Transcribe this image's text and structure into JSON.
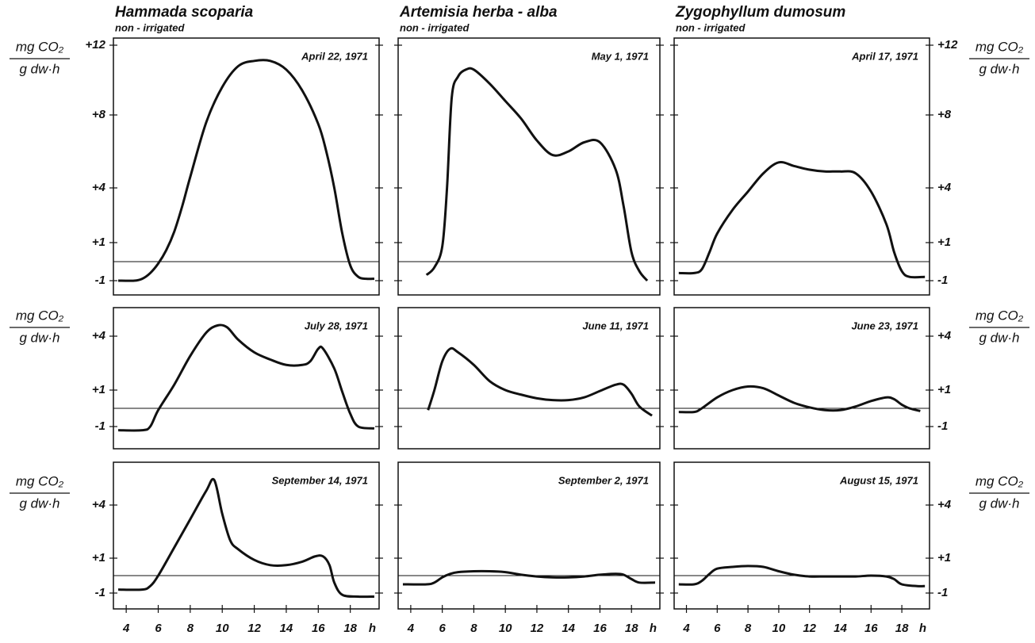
{
  "chart_data": [
    {
      "type": "line",
      "title": "Hammada scoparia",
      "subtitle": "non - irrigated",
      "annotation": "April 22, 1971",
      "ylabel": [
        "mg CO₂",
        "g dw·h"
      ],
      "ylim": [
        -1.75,
        12.4
      ],
      "yticks": [
        -1,
        {
          "value": 1,
          "label": "+1"
        },
        {
          "value": 4,
          "label": "+4"
        },
        {
          "value": 8,
          "label": "+8"
        },
        {
          "value": 12,
          "label": "+12"
        }
      ],
      "xlim": [
        3.2,
        19.8
      ],
      "color": "#111",
      "x": [
        3.5,
        4.5,
        5,
        5.5,
        6,
        6.5,
        7,
        7.5,
        8,
        9,
        10,
        11,
        12,
        13,
        14,
        15,
        16,
        16.5,
        17,
        17.5,
        18,
        18.5,
        19,
        19.5
      ],
      "values": [
        -1.0,
        -1.0,
        -0.9,
        -0.6,
        -0.1,
        0.6,
        1.6,
        3,
        4.6,
        7.6,
        9.6,
        10.8,
        11.1,
        11.1,
        10.6,
        9.4,
        7.5,
        6,
        4,
        1.5,
        -0.2,
        -0.8,
        -0.9,
        -0.9
      ]
    },
    {
      "type": "line",
      "title": "Artemisia herba - alba",
      "subtitle": "non - irrigated",
      "annotation": "May 1, 1971",
      "ylim": [
        -1.75,
        12.4
      ],
      "xlim": [
        3.2,
        19.8
      ],
      "color": "#111",
      "x": [
        5,
        5.5,
        6,
        6.3,
        6.6,
        7,
        7.5,
        8,
        9,
        10,
        11,
        12,
        13,
        14,
        15,
        16,
        17,
        17.5,
        18,
        18.5,
        19
      ],
      "values": [
        -0.7,
        -0.3,
        0.8,
        4,
        9,
        10.2,
        10.6,
        10.6,
        9.8,
        8.8,
        7.8,
        6.6,
        5.8,
        6.0,
        6.5,
        6.5,
        5.0,
        3,
        0.5,
        -0.5,
        -1.0
      ]
    },
    {
      "type": "line",
      "title": "Zygophyllum dumosum",
      "subtitle": "non - irrigated",
      "annotation": "April 17, 1971",
      "ylabel": [
        "mg CO₂",
        "g dw·h"
      ],
      "ylim": [
        -1.75,
        12.4
      ],
      "yticks": [
        -1,
        {
          "value": 1,
          "label": "+1"
        },
        {
          "value": 4,
          "label": "+4"
        },
        {
          "value": 8,
          "label": "+8"
        },
        {
          "value": 12,
          "label": "+12"
        }
      ],
      "xlim": [
        3.2,
        19.8
      ],
      "color": "#111",
      "x": [
        3.5,
        4.5,
        5,
        5.5,
        6,
        7,
        8,
        9,
        10,
        11,
        12,
        13,
        14,
        15,
        16,
        17,
        17.5,
        18,
        18.5,
        19.5
      ],
      "values": [
        -0.6,
        -0.6,
        -0.4,
        0.5,
        1.5,
        2.8,
        3.8,
        4.8,
        5.4,
        5.2,
        5.0,
        4.9,
        4.9,
        4.8,
        3.8,
        2.0,
        0.5,
        -0.5,
        -0.8,
        -0.8
      ]
    },
    {
      "type": "line",
      "annotation": "July 28, 1971",
      "ylabel": [
        "mg CO₂",
        "g dw·h"
      ],
      "ylim": [
        -2.2,
        5.6
      ],
      "yticks": [
        -1,
        {
          "value": 1,
          "label": "+1"
        },
        {
          "value": 4,
          "label": "+4"
        }
      ],
      "xlim": [
        3.2,
        19.8
      ],
      "color": "#111",
      "x": [
        3.5,
        5,
        5.5,
        6,
        7,
        8,
        9,
        9.7,
        10.3,
        11,
        12,
        13,
        14,
        15,
        15.5,
        16,
        16.3,
        17,
        17.5,
        18,
        18.5,
        19.5
      ],
      "values": [
        -1.2,
        -1.2,
        -1,
        -0.1,
        1.3,
        2.9,
        4.2,
        4.6,
        4.5,
        3.8,
        3.1,
        2.7,
        2.4,
        2.4,
        2.6,
        3.3,
        3.3,
        2.2,
        0.9,
        -0.3,
        -1.0,
        -1.1
      ]
    },
    {
      "type": "line",
      "annotation": "June 11, 1971",
      "ylim": [
        -2.2,
        5.6
      ],
      "xlim": [
        3.2,
        19.8
      ],
      "color": "#111",
      "x": [
        5.1,
        5.5,
        6,
        6.5,
        7,
        8,
        9,
        10,
        11,
        12,
        13,
        14,
        15,
        16,
        17,
        17.5,
        18,
        18.5,
        19.3
      ],
      "values": [
        -0.1,
        1.0,
        2.6,
        3.3,
        3.1,
        2.4,
        1.5,
        1.0,
        0.75,
        0.55,
        0.45,
        0.45,
        0.6,
        0.95,
        1.3,
        1.3,
        0.8,
        0.1,
        -0.4
      ]
    },
    {
      "type": "line",
      "annotation": "June 23, 1971",
      "ylabel": [
        "mg CO₂",
        "g dw·h"
      ],
      "ylim": [
        -2.2,
        5.6
      ],
      "yticks": [
        -1,
        {
          "value": 1,
          "label": "+1"
        },
        {
          "value": 4,
          "label": "+4"
        }
      ],
      "xlim": [
        3.2,
        19.8
      ],
      "color": "#111",
      "x": [
        3.5,
        4.5,
        5,
        6,
        7,
        8,
        9,
        10,
        11,
        12,
        13,
        14,
        15,
        16,
        17,
        17.5,
        18,
        18.5,
        19.2
      ],
      "values": [
        -0.2,
        -0.2,
        0,
        0.6,
        1.0,
        1.2,
        1.1,
        0.7,
        0.3,
        0.05,
        -0.1,
        -0.1,
        0.1,
        0.4,
        0.6,
        0.5,
        0.2,
        0,
        -0.15
      ]
    },
    {
      "type": "line",
      "annotation": "September 14, 1971",
      "ylabel": [
        "mg CO₂",
        "g dw·h"
      ],
      "ylim": [
        -1.9,
        6.4
      ],
      "yticks": [
        -1,
        {
          "value": 1,
          "label": "+1"
        },
        {
          "value": 4,
          "label": "+4"
        }
      ],
      "xlim": [
        3.2,
        19.8
      ],
      "xticks": [
        4,
        6,
        8,
        10,
        12,
        14,
        16,
        18
      ],
      "xlabel": "h",
      "color": "#111",
      "x": [
        3.5,
        5,
        5.5,
        6,
        7,
        8,
        9,
        9.5,
        10,
        10.5,
        11,
        12,
        13,
        14,
        15,
        15.8,
        16.3,
        16.7,
        17,
        17.5,
        18.5,
        19.5
      ],
      "values": [
        -0.8,
        -0.8,
        -0.6,
        0,
        1.6,
        3.2,
        4.8,
        5.4,
        3.5,
        2.0,
        1.5,
        0.9,
        0.6,
        0.6,
        0.8,
        1.1,
        1.1,
        0.6,
        -0.4,
        -1.1,
        -1.2,
        -1.2
      ]
    },
    {
      "type": "line",
      "annotation": "September 2, 1971",
      "ylim": [
        -1.9,
        6.4
      ],
      "xlim": [
        3.2,
        19.8
      ],
      "xticks": [
        4,
        6,
        8,
        10,
        12,
        14,
        16,
        18
      ],
      "xlabel": "h",
      "color": "#111",
      "x": [
        3.5,
        5,
        5.5,
        6,
        6.5,
        7,
        8,
        9,
        10,
        11,
        12,
        13,
        14,
        15,
        16,
        17,
        17.5,
        18,
        18.5,
        19.5
      ],
      "values": [
        -0.5,
        -0.5,
        -0.4,
        -0.1,
        0.1,
        0.2,
        0.25,
        0.25,
        0.2,
        0.05,
        -0.05,
        -0.1,
        -0.1,
        -0.05,
        0.05,
        0.1,
        0.05,
        -0.2,
        -0.4,
        -0.4
      ]
    },
    {
      "type": "line",
      "annotation": "August 15, 1971",
      "ylabel": [
        "mg CO₂",
        "g dw·h"
      ],
      "ylim": [
        -1.9,
        6.4
      ],
      "yticks": [
        -1,
        {
          "value": 1,
          "label": "+1"
        },
        {
          "value": 4,
          "label": "+4"
        }
      ],
      "xlim": [
        3.2,
        19.8
      ],
      "xticks": [
        4,
        6,
        8,
        10,
        12,
        14,
        16,
        18
      ],
      "xlabel": "h",
      "color": "#111",
      "x": [
        3.5,
        4.5,
        5,
        5.5,
        6,
        7,
        8,
        9,
        10,
        11,
        12,
        13,
        14,
        15,
        16,
        17,
        17.5,
        18,
        19,
        19.5
      ],
      "values": [
        -0.5,
        -0.5,
        -0.3,
        0.1,
        0.4,
        0.5,
        0.55,
        0.5,
        0.25,
        0.05,
        -0.05,
        -0.05,
        -0.05,
        -0.05,
        0,
        -0.05,
        -0.2,
        -0.5,
        -0.6,
        -0.6
      ]
    }
  ]
}
